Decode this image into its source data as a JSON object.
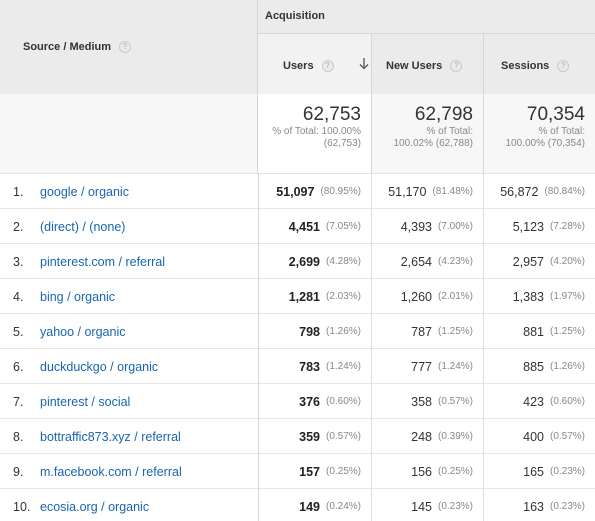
{
  "header": {
    "source_medium_label": "Source / Medium",
    "help_glyph": "?",
    "group_label": "Acquisition",
    "columns": [
      {
        "label": "Users",
        "sorted": true
      },
      {
        "label": "New Users",
        "sorted": false
      },
      {
        "label": "Sessions",
        "sorted": false
      }
    ]
  },
  "totals": [
    {
      "value": "62,753",
      "line1": "% of Total: 100.00%",
      "line2": "(62,753)"
    },
    {
      "value": "62,798",
      "line1": "% of Total:",
      "line2": "100.02% (62,788)"
    },
    {
      "value": "70,354",
      "line1": "% of Total:",
      "line2": "100.00% (70,354)"
    }
  ],
  "rows": [
    {
      "index": "1.",
      "source": "google / organic",
      "users": "51,097",
      "users_pct": "(80.95%)",
      "new_users": "51,170",
      "new_users_pct": "(81.48%)",
      "sessions": "56,872",
      "sessions_pct": "(80.84%)"
    },
    {
      "index": "2.",
      "source": "(direct) / (none)",
      "users": "4,451",
      "users_pct": "(7.05%)",
      "new_users": "4,393",
      "new_users_pct": "(7.00%)",
      "sessions": "5,123",
      "sessions_pct": "(7.28%)"
    },
    {
      "index": "3.",
      "source": "pinterest.com / referral",
      "users": "2,699",
      "users_pct": "(4.28%)",
      "new_users": "2,654",
      "new_users_pct": "(4.23%)",
      "sessions": "2,957",
      "sessions_pct": "(4.20%)"
    },
    {
      "index": "4.",
      "source": "bing / organic",
      "users": "1,281",
      "users_pct": "(2.03%)",
      "new_users": "1,260",
      "new_users_pct": "(2.01%)",
      "sessions": "1,383",
      "sessions_pct": "(1.97%)"
    },
    {
      "index": "5.",
      "source": "yahoo / organic",
      "users": "798",
      "users_pct": "(1.26%)",
      "new_users": "787",
      "new_users_pct": "(1.25%)",
      "sessions": "881",
      "sessions_pct": "(1.25%)"
    },
    {
      "index": "6.",
      "source": "duckduckgo / organic",
      "users": "783",
      "users_pct": "(1.24%)",
      "new_users": "777",
      "new_users_pct": "(1.24%)",
      "sessions": "885",
      "sessions_pct": "(1.26%)"
    },
    {
      "index": "7.",
      "source": "pinterest / social",
      "users": "376",
      "users_pct": "(0.60%)",
      "new_users": "358",
      "new_users_pct": "(0.57%)",
      "sessions": "423",
      "sessions_pct": "(0.60%)"
    },
    {
      "index": "8.",
      "source": "bottraffic873.xyz / referral",
      "users": "359",
      "users_pct": "(0.57%)",
      "new_users": "248",
      "new_users_pct": "(0.39%)",
      "sessions": "400",
      "sessions_pct": "(0.57%)"
    },
    {
      "index": "9.",
      "source": "m.facebook.com / referral",
      "users": "157",
      "users_pct": "(0.25%)",
      "new_users": "156",
      "new_users_pct": "(0.25%)",
      "sessions": "165",
      "sessions_pct": "(0.23%)"
    },
    {
      "index": "10.",
      "source": "ecosia.org / organic",
      "users": "149",
      "users_pct": "(0.24%)",
      "new_users": "145",
      "new_users_pct": "(0.23%)",
      "sessions": "163",
      "sessions_pct": "(0.23%)"
    }
  ],
  "colors": {
    "link": "#1a65b0",
    "header_bg": "#ebebeb",
    "muted_text": "#888888"
  },
  "icons": {
    "help": "help-circle-icon",
    "sort": "arrow-down-icon"
  }
}
